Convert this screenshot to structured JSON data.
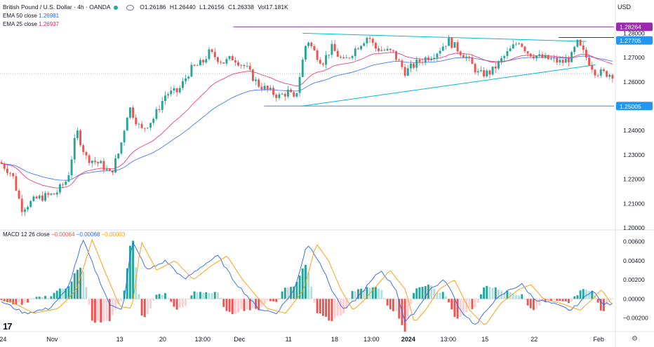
{
  "header": {
    "title": "British Pound / U.S. Dollar · 4h · OANDA",
    "ohlc": {
      "o": "O1.26186",
      "h": "H1.26440",
      "l": "L1.26156",
      "c": "C1.26338"
    },
    "vol": "Vol17.181K",
    "currency": "USD"
  },
  "indicators": {
    "ema50": {
      "label": "EMA 50 close",
      "value": "1.26981",
      "color": "#2962ff"
    },
    "ema25": {
      "label": "EMA 25 close",
      "value": "1.26937",
      "color": "#e91e63"
    },
    "macd": {
      "label": "MACD 12 26 close",
      "v1": "−0.00064",
      "v2": "−0.00068",
      "v3": "−0.00003",
      "c1": "#ef5350",
      "c2": "#2962ff",
      "c3": "#ff9800"
    }
  },
  "colors": {
    "up": "#26a69a",
    "down": "#ef5350",
    "resistance": "#9c27b0",
    "trend": "#00bcd4",
    "support": "#2196f3"
  },
  "logo": "17",
  "chart_data": {
    "type": "candlestick",
    "symbol": "GBPUSD",
    "timeframe": "4h",
    "price_axis": {
      "ylim": [
        1.2,
        1.285
      ],
      "ticks": [
        "1.28000",
        "1.27000",
        "1.26000",
        "1.25000",
        "1.24000",
        "1.23000",
        "1.22000",
        "1.21000",
        "1.20000"
      ]
    },
    "macd_axis": {
      "ylim": [
        -0.0032,
        0.0067
      ],
      "ticks": [
        "0.00600",
        "0.00400",
        "0.00200",
        "0.00000",
        "−0.00200"
      ]
    },
    "time_axis_labels": [
      "24",
      "Nov",
      "13",
      "20",
      "13:00",
      "Dec",
      "11",
      "18",
      "13:00",
      "2024",
      "13:00",
      "15",
      "22",
      "Feb"
    ],
    "price_path": [
      [
        0,
        1.227
      ],
      [
        0.02,
        1.222
      ],
      [
        0.035,
        1.208
      ],
      [
        0.06,
        1.212
      ],
      [
        0.09,
        1.214
      ],
      [
        0.11,
        1.22
      ],
      [
        0.125,
        1.24
      ],
      [
        0.14,
        1.229
      ],
      [
        0.165,
        1.226
      ],
      [
        0.18,
        1.222
      ],
      [
        0.195,
        1.232
      ],
      [
        0.21,
        1.25
      ],
      [
        0.23,
        1.24
      ],
      [
        0.25,
        1.245
      ],
      [
        0.27,
        1.255
      ],
      [
        0.29,
        1.256
      ],
      [
        0.31,
        1.265
      ],
      [
        0.33,
        1.268
      ],
      [
        0.34,
        1.272
      ],
      [
        0.365,
        1.268
      ],
      [
        0.38,
        1.27
      ],
      [
        0.4,
        1.266
      ],
      [
        0.42,
        1.259
      ],
      [
        0.44,
        1.256
      ],
      [
        0.455,
        1.254
      ],
      [
        0.47,
        1.256
      ],
      [
        0.48,
        1.252
      ],
      [
        0.49,
        1.265
      ],
      [
        0.5,
        1.278
      ],
      [
        0.51,
        1.273
      ],
      [
        0.525,
        1.268
      ],
      [
        0.54,
        1.274
      ],
      [
        0.56,
        1.268
      ],
      [
        0.58,
        1.274
      ],
      [
        0.6,
        1.279
      ],
      [
        0.61,
        1.274
      ],
      [
        0.64,
        1.272
      ],
      [
        0.66,
        1.264
      ],
      [
        0.68,
        1.268
      ],
      [
        0.71,
        1.272
      ],
      [
        0.73,
        1.277
      ],
      [
        0.76,
        1.27
      ],
      [
        0.78,
        1.263
      ],
      [
        0.8,
        1.264
      ],
      [
        0.82,
        1.27
      ],
      [
        0.845,
        1.277
      ],
      [
        0.86,
        1.272
      ],
      [
        0.88,
        1.27
      ],
      [
        0.9,
        1.269
      ],
      [
        0.915,
        1.268
      ],
      [
        0.93,
        1.27
      ],
      [
        0.94,
        1.276
      ],
      [
        0.955,
        1.27
      ],
      [
        0.97,
        1.264
      ],
      [
        1.0,
        1.263
      ]
    ],
    "annotations": [
      {
        "label": "1.28264",
        "value": 1.28264,
        "kind": "resistance"
      },
      {
        "label": "1.27705",
        "value": 1.27705,
        "kind": "trend"
      },
      {
        "label": "1.25005",
        "value": 1.25005,
        "kind": "support"
      }
    ],
    "trendlines": [
      {
        "from": [
          0.493,
          1.28
        ],
        "to": [
          0.955,
          1.2766
        ]
      },
      {
        "from": [
          0.49,
          1.25
        ],
        "to": [
          0.97,
          1.267
        ]
      }
    ],
    "macd_path": [
      [
        0,
        -0.0002
      ],
      [
        0.04,
        -0.0015
      ],
      [
        0.08,
        -0.001
      ],
      [
        0.11,
        0.001
      ],
      [
        0.135,
        0.0062
      ],
      [
        0.155,
        0.003
      ],
      [
        0.18,
        -0.0008
      ],
      [
        0.2,
        -0.001
      ],
      [
        0.215,
        0.006
      ],
      [
        0.24,
        0.003
      ],
      [
        0.27,
        0.004
      ],
      [
        0.3,
        0.002
      ],
      [
        0.33,
        0.0035
      ],
      [
        0.355,
        0.0045
      ],
      [
        0.38,
        0.002
      ],
      [
        0.42,
        -0.001
      ],
      [
        0.45,
        -0.0015
      ],
      [
        0.48,
        0.001
      ],
      [
        0.5,
        0.0058
      ],
      [
        0.52,
        0.004
      ],
      [
        0.54,
        0.001
      ],
      [
        0.56,
        -0.0012
      ],
      [
        0.58,
        0.0
      ],
      [
        0.6,
        0.0015
      ],
      [
        0.62,
        0.003
      ],
      [
        0.645,
        0.001
      ],
      [
        0.66,
        -0.0025
      ],
      [
        0.68,
        -0.001
      ],
      [
        0.7,
        0.001
      ],
      [
        0.725,
        0.002
      ],
      [
        0.75,
        -0.0012
      ],
      [
        0.775,
        -0.0028
      ],
      [
        0.8,
        -0.0005
      ],
      [
        0.83,
        0.001
      ],
      [
        0.85,
        0.0015
      ],
      [
        0.87,
        0.0
      ],
      [
        0.9,
        -0.0005
      ],
      [
        0.93,
        -0.0012
      ],
      [
        0.95,
        0.0
      ],
      [
        0.965,
        0.001
      ],
      [
        0.98,
        -0.0005
      ],
      [
        1.0,
        -0.0006
      ]
    ],
    "signal_lag": 0.015
  }
}
